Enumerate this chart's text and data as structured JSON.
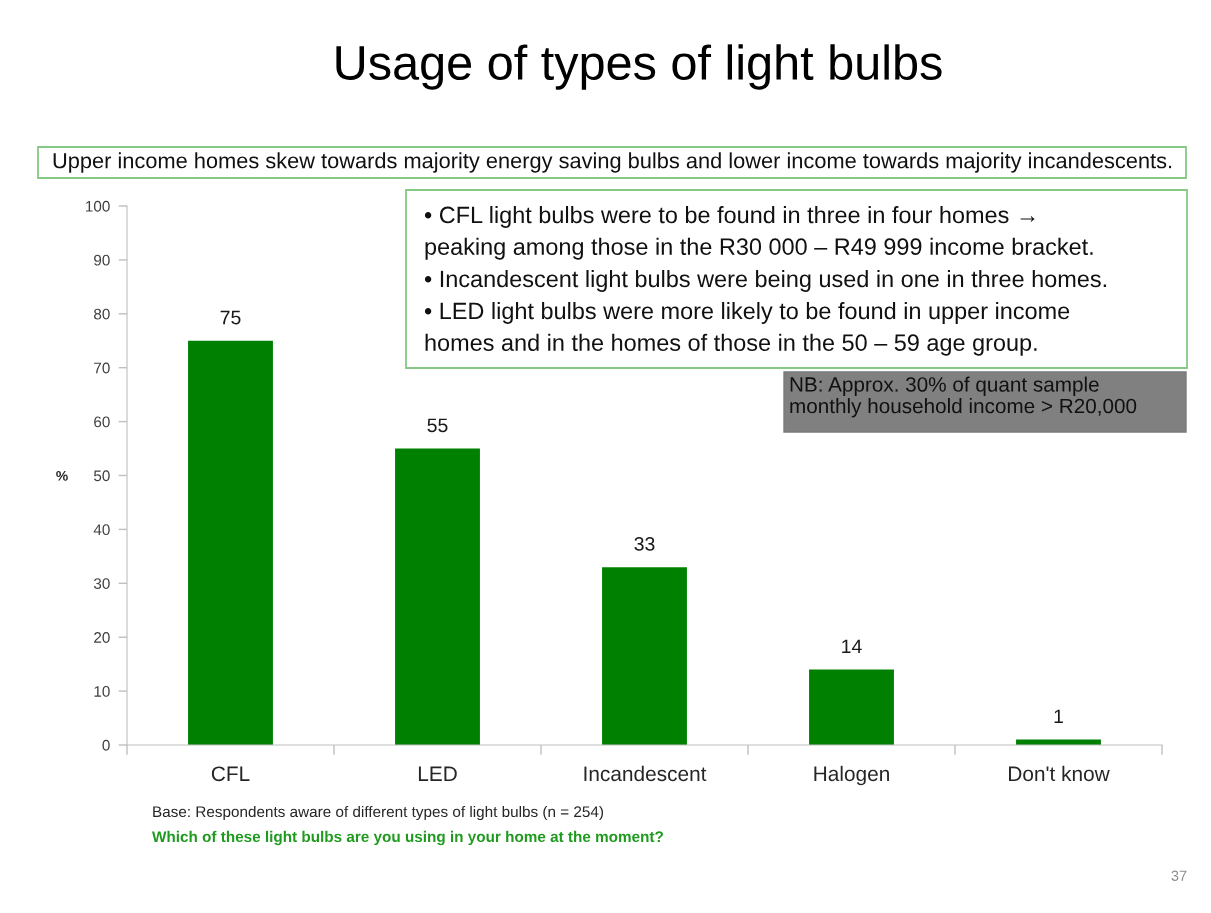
{
  "chart_data": {
    "type": "bar",
    "title": "Usage of types of light bulbs",
    "subtitle": "Upper income homes skew towards majority energy saving bulbs and lower income towards majority incandescents.",
    "categories": [
      "CFL",
      "LED",
      "Incandescent",
      "Halogen",
      "Don't know"
    ],
    "values": [
      75,
      55,
      33,
      14,
      1
    ],
    "color": "#008000",
    "data_labels": true,
    "ylabel": "%",
    "ylim": [
      0,
      100
    ],
    "yticks": [
      0,
      10,
      20,
      30,
      40,
      50,
      60,
      70,
      80,
      90,
      100
    ],
    "grid": false,
    "annotations": [
      "• CFL light bulbs were to be found in three in four homes →\npeaking among those in the R30 000 – R49 999 income bracket.",
      "• Incandescent light bulbs were being used in one in three homes.",
      "• LED light bulbs were more likely to be found in upper income\nhomes and in the homes of those in the 50 – 59 age group.",
      "NB: Approx. 30% of quant sample\nmonthly household income > R20,000",
      "Base: Respondents aware of different types of light bulbs (n = 254)",
      "Which of these light bulbs are you using in your home at the moment?",
      "37"
    ]
  }
}
